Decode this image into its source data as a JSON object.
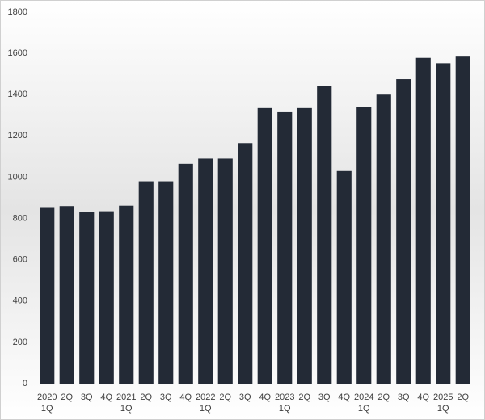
{
  "chart_data": {
    "type": "bar",
    "categories": [
      [
        "2020",
        "1Q"
      ],
      "2Q",
      "3Q",
      "4Q",
      [
        "2021",
        "1Q"
      ],
      "2Q",
      "3Q",
      "4Q",
      [
        "2022",
        "1Q"
      ],
      "2Q",
      "3Q",
      "4Q",
      [
        "2023",
        "1Q"
      ],
      "2Q",
      "3Q",
      "4Q",
      [
        "2024",
        "1Q"
      ],
      "2Q",
      "3Q",
      "4Q",
      [
        "2025",
        "1Q"
      ],
      "2Q"
    ],
    "values": [
      855,
      860,
      830,
      835,
      862,
      980,
      980,
      1065,
      1090,
      1090,
      1165,
      1335,
      1315,
      1335,
      1440,
      1030,
      1340,
      1400,
      1475,
      1578,
      1552,
      1588
    ],
    "color": "#232a36",
    "ylim": [
      0,
      1800
    ],
    "yticks": [
      0,
      200,
      400,
      600,
      800,
      1000,
      1200,
      1400,
      1600,
      1800
    ]
  }
}
